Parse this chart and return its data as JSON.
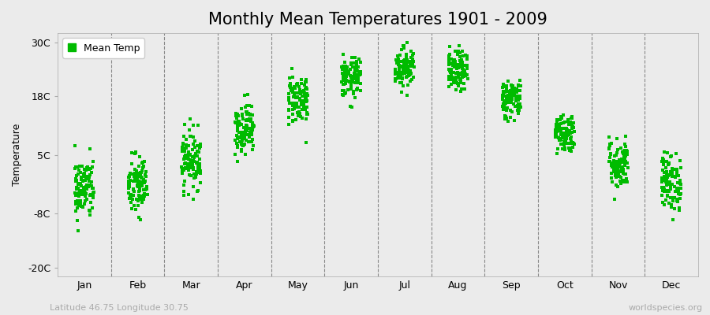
{
  "title": "Monthly Mean Temperatures 1901 - 2009",
  "ylabel": "Temperature",
  "xlabel_labels": [
    "Jan",
    "Feb",
    "Mar",
    "Apr",
    "May",
    "Jun",
    "Jul",
    "Aug",
    "Sep",
    "Oct",
    "Nov",
    "Dec"
  ],
  "ytick_labels": [
    "-20C",
    "-8C",
    "5C",
    "18C",
    "30C"
  ],
  "ytick_values": [
    -20,
    -8,
    5,
    18,
    30
  ],
  "ylim": [
    -22,
    32
  ],
  "xlim": [
    0.0,
    12.0
  ],
  "background_color": "#ebebeb",
  "plot_bg_color": "#ebebeb",
  "dot_color": "#00bb00",
  "legend_label": "Mean Temp",
  "footer_left": "Latitude 46.75 Longitude 30.75",
  "footer_right": "worldspecies.org",
  "monthly_means": [
    -2.5,
    -2.0,
    4.0,
    11.0,
    17.5,
    22.0,
    24.5,
    23.5,
    17.5,
    10.0,
    3.0,
    -1.0
  ],
  "monthly_stds": [
    3.5,
    3.5,
    3.2,
    2.8,
    2.8,
    2.2,
    2.2,
    2.2,
    2.2,
    2.2,
    2.8,
    3.2
  ],
  "n_years": 109,
  "random_seed": 42,
  "title_fontsize": 15,
  "axis_fontsize": 9,
  "legend_fontsize": 9,
  "footer_fontsize": 8,
  "dot_size": 5,
  "x_spread": 0.18
}
